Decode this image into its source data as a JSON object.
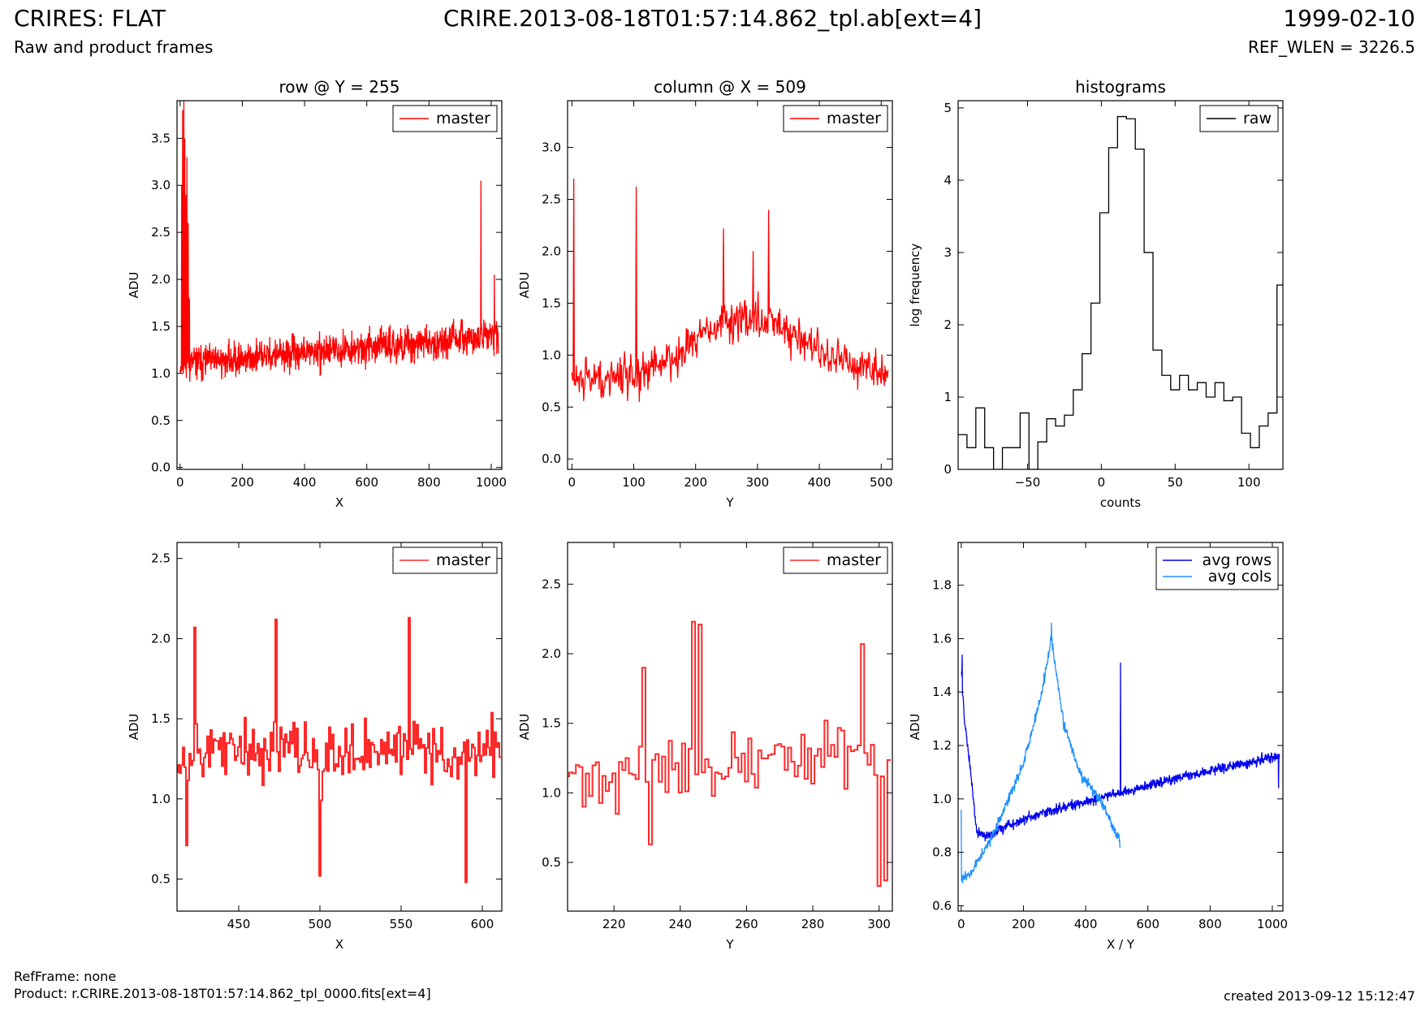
{
  "header": {
    "title_left": "CRIRES: FLAT",
    "title_center": "CRIRE.2013-08-18T01:57:14.862_tpl.ab[ext=4]",
    "title_right": "1999-02-10",
    "subtitle_left": "Raw and product frames",
    "subtitle_right": "REF_WLEN = 3226.5"
  },
  "footer": {
    "refframe": "RefFrame: none",
    "product": "Product: r.CRIRE.2013-08-18T01:57:14.862_tpl_0000.fits[ext=4]",
    "created": "created 2013-09-12 15:12:47"
  },
  "colors": {
    "master": "#ff0000",
    "master_zoom": "#ff2a2a",
    "raw": "#000000",
    "avg_rows": "#0000ee",
    "avg_cols": "#1e90ff"
  },
  "chart_data": [
    {
      "id": "row",
      "type": "line",
      "title": "row @ Y = 255",
      "xlabel": "X",
      "ylabel": "ADU",
      "xlim": [
        -10,
        1034
      ],
      "ylim": [
        -0.02,
        3.9
      ],
      "xticks": [
        "0",
        "200",
        "400",
        "600",
        "800",
        "1000"
      ],
      "yticks": [
        "0.0",
        "0.5",
        "1.0",
        "1.5",
        "2.0",
        "2.5",
        "3.0",
        "3.5"
      ],
      "legend": {
        "position": "top-right",
        "entries": [
          "master"
        ]
      },
      "series": [
        {
          "name": "master",
          "style": "noisy",
          "n": 1024,
          "seed": 11,
          "mean_start": 1.1,
          "mean_end": 1.4,
          "noise": 0.22,
          "clip": [
            0.25,
            2.15
          ],
          "spikes": [
            [
              5,
              3.0
            ],
            [
              8,
              3.8
            ],
            [
              12,
              3.9
            ],
            [
              15,
              3.5
            ],
            [
              18,
              2.9
            ],
            [
              22,
              3.3
            ],
            [
              26,
              2.6
            ],
            [
              30,
              1.8
            ],
            [
              967,
              3.05
            ],
            [
              1010,
              2.05
            ]
          ]
        }
      ]
    },
    {
      "id": "column",
      "type": "line",
      "title": "column @ X = 509",
      "xlabel": "Y",
      "ylabel": "ADU",
      "xlim": [
        -7,
        518
      ],
      "ylim": [
        -0.1,
        3.45
      ],
      "xticks": [
        "0",
        "100",
        "200",
        "300",
        "400",
        "500"
      ],
      "yticks": [
        "0.0",
        "0.5",
        "1.0",
        "1.5",
        "2.0",
        "2.5",
        "3.0"
      ],
      "legend": {
        "position": "top-right",
        "entries": [
          "master"
        ]
      },
      "series": [
        {
          "name": "master",
          "style": "noisy",
          "n": 512,
          "seed": 29,
          "mean_start": 0.75,
          "mean_end": 0.85,
          "bump": {
            "center": 280,
            "width": 120,
            "height": 0.55
          },
          "noise": 0.25,
          "clip": [
            0.15,
            2.2
          ],
          "spikes": [
            [
              3,
              2.7
            ],
            [
              104,
              2.62
            ],
            [
              245,
              2.22
            ],
            [
              318,
              2.4
            ],
            [
              293,
              2.0
            ]
          ]
        }
      ]
    },
    {
      "id": "histograms",
      "type": "line",
      "title": "histograms",
      "xlabel": "counts",
      "ylabel": "log frequency",
      "xlim": [
        -97,
        123
      ],
      "ylim": [
        0,
        5.1
      ],
      "xticks": [
        "−50",
        "0",
        "50",
        "100"
      ],
      "yticks": [
        "0",
        "1",
        "2",
        "3",
        "4",
        "5"
      ],
      "legend": {
        "position": "top-right",
        "entries": [
          "raw"
        ]
      },
      "series": [
        {
          "name": "raw",
          "style": "step",
          "bin_edges": [
            -97,
            -91,
            -85,
            -79,
            -73,
            -67,
            -61,
            -55,
            -49,
            -43,
            -37,
            -31,
            -25,
            -19,
            -13,
            -7,
            -1,
            5,
            11,
            17,
            23,
            29,
            35,
            41,
            47,
            53,
            59,
            65,
            71,
            77,
            83,
            89,
            95,
            101,
            107,
            113,
            119,
            123
          ],
          "counts": [
            0.48,
            0.3,
            0.85,
            0.3,
            0.0,
            0.3,
            0.3,
            0.78,
            0.0,
            0.38,
            0.7,
            0.6,
            0.75,
            1.1,
            1.6,
            2.3,
            3.55,
            4.45,
            4.88,
            4.85,
            4.43,
            3.0,
            1.65,
            1.3,
            1.1,
            1.3,
            1.1,
            1.2,
            1.0,
            1.2,
            0.95,
            1.0,
            0.5,
            0.3,
            0.6,
            0.78,
            2.55
          ]
        }
      ]
    },
    {
      "id": "row-zoom",
      "type": "line",
      "title": "",
      "xlabel": "X",
      "ylabel": "ADU",
      "xlim": [
        412,
        612
      ],
      "ylim": [
        0.3,
        2.6
      ],
      "xticks": [
        "450",
        "500",
        "550",
        "600"
      ],
      "yticks": [
        "0.5",
        "1.0",
        "1.5",
        "2.0",
        "2.5"
      ],
      "legend": {
        "position": "top-right",
        "entries": [
          "master"
        ]
      },
      "series": [
        {
          "name": "master",
          "style": "step-noisy",
          "x_start": 412,
          "n": 200,
          "seed": 53,
          "mean_start": 1.3,
          "mean_end": 1.3,
          "noise": 0.25,
          "clip": [
            0.48,
            2.13
          ],
          "spikes": [
            [
              423,
              2.07
            ],
            [
              473,
              2.12
            ],
            [
              555,
              2.13
            ],
            [
              418,
              0.71
            ],
            [
              500,
              0.52
            ],
            [
              590,
              0.48
            ]
          ]
        }
      ]
    },
    {
      "id": "column-zoom",
      "type": "line",
      "title": "",
      "xlabel": "Y",
      "ylabel": "ADU",
      "xlim": [
        206,
        304
      ],
      "ylim": [
        0.15,
        2.8
      ],
      "xticks": [
        "220",
        "240",
        "260",
        "280",
        "300"
      ],
      "yticks": [
        "0.5",
        "1.0",
        "1.5",
        "2.0",
        "2.5"
      ],
      "legend": {
        "position": "top-right",
        "entries": [
          "master"
        ]
      },
      "series": [
        {
          "name": "master",
          "style": "step-noisy",
          "x_start": 206,
          "n": 98,
          "seed": 71,
          "mean_start": 1.1,
          "mean_end": 1.3,
          "noise": 0.28,
          "clip": [
            0.33,
            2.23
          ],
          "spikes": [
            [
              244,
              2.23
            ],
            [
              246,
              2.21
            ],
            [
              229,
              1.9
            ],
            [
              295,
              2.07
            ],
            [
              231,
              0.63
            ],
            [
              300,
              0.33
            ],
            [
              302,
              0.37
            ]
          ]
        }
      ]
    },
    {
      "id": "averages",
      "type": "line",
      "title": "",
      "xlabel": "X / Y",
      "ylabel": "ADU",
      "xlim": [
        -10,
        1034
      ],
      "ylim": [
        0.58,
        1.96
      ],
      "xticks": [
        "0",
        "200",
        "400",
        "600",
        "800",
        "1000"
      ],
      "yticks": [
        "0.6",
        "0.8",
        "1.0",
        "1.2",
        "1.4",
        "1.6",
        "1.8"
      ],
      "legend": {
        "position": "top-right",
        "entries": [
          "avg rows",
          "avg cols"
        ]
      },
      "series": [
        {
          "name": "avg rows",
          "style": "noisy",
          "n": 1024,
          "seed": 97,
          "curve": [
            [
              0,
              1.5
            ],
            [
              10,
              1.3
            ],
            [
              30,
              1.1
            ],
            [
              50,
              0.87
            ],
            [
              80,
              0.86
            ],
            [
              150,
              0.9
            ],
            [
              300,
              0.96
            ],
            [
              500,
              1.02
            ],
            [
              700,
              1.08
            ],
            [
              900,
              1.13
            ],
            [
              1023,
              1.16
            ]
          ],
          "noise": 0.025,
          "clip": [
            0.6,
            1.95
          ],
          "spikes": [
            [
              3,
              1.54
            ],
            [
              512,
              1.51
            ],
            [
              1020,
              1.04
            ]
          ]
        },
        {
          "name": "avg cols",
          "style": "noisy",
          "n": 512,
          "seed": 131,
          "curve": [
            [
              0,
              0.7
            ],
            [
              30,
              0.72
            ],
            [
              100,
              0.86
            ],
            [
              200,
              1.13
            ],
            [
              260,
              1.4
            ],
            [
              290,
              1.6
            ],
            [
              300,
              1.52
            ],
            [
              330,
              1.28
            ],
            [
              380,
              1.1
            ],
            [
              450,
              0.99
            ],
            [
              510,
              0.84
            ]
          ],
          "noise": 0.025,
          "clip": [
            0.6,
            1.95
          ],
          "spikes": [
            [
              290,
              1.66
            ],
            [
              0,
              0.96
            ]
          ]
        }
      ]
    }
  ]
}
